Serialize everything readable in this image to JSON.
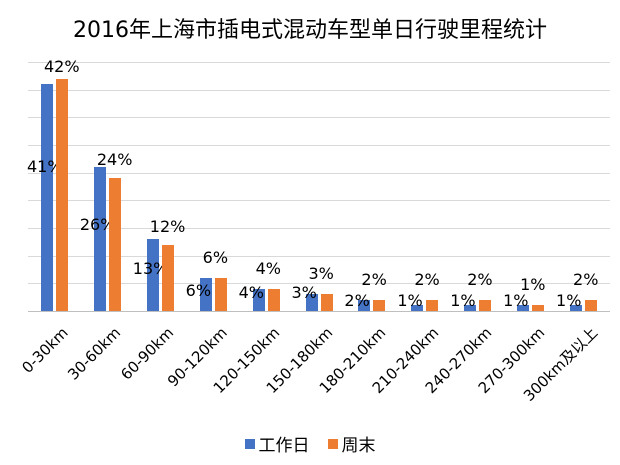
{
  "chart_data": {
    "type": "bar",
    "title": "2016年上海市插电式混动车型单日行驶里程统计",
    "xlabel": "",
    "ylabel": "",
    "ylim": [
      0,
      45
    ],
    "grid": true,
    "yaxis_visible": false,
    "legend_position": "bottom",
    "categories": [
      "0-30km",
      "30-60km",
      "60-90km",
      "90-120km",
      "120-150km",
      "150-180km",
      "180-210km",
      "210-240km",
      "240-270km",
      "270-300km",
      "300km及以上"
    ],
    "series": [
      {
        "name": "工作日",
        "color": "#4472c4",
        "values": [
          41,
          26,
          13,
          6,
          4,
          3,
          2,
          1,
          1,
          1,
          1
        ],
        "labels": [
          "41%",
          "26%",
          "13%",
          "6%",
          "4%",
          "3%",
          "2%",
          "1%",
          "1%",
          "1%",
          "1%"
        ]
      },
      {
        "name": "周末",
        "color": "#ed7d31",
        "values": [
          42,
          24,
          12,
          6,
          4,
          3,
          2,
          2,
          2,
          1,
          2
        ],
        "labels": [
          "42%",
          "24%",
          "12%",
          "6%",
          "4%",
          "3%",
          "2%",
          "2%",
          "2%",
          "1%",
          "2%"
        ]
      }
    ]
  },
  "legend": {
    "items": [
      {
        "label": "工作日",
        "color": "#4472c4"
      },
      {
        "label": "周末",
        "color": "#ed7d31"
      }
    ]
  }
}
